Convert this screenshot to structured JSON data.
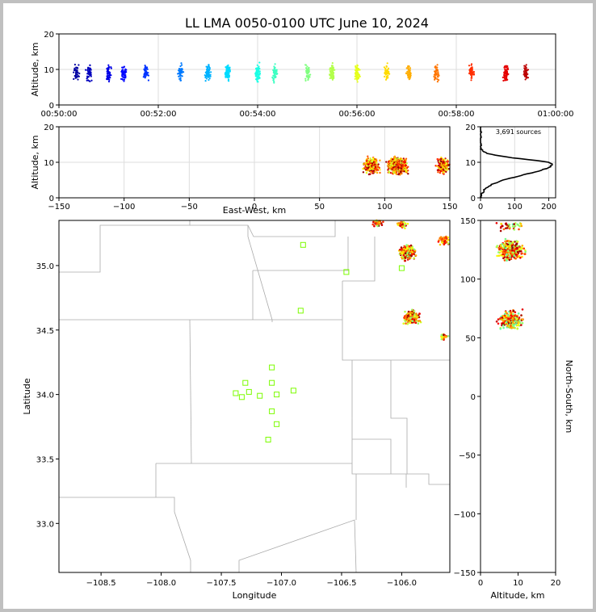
{
  "chart_data": [
    {
      "id": "time_height",
      "type": "scatter",
      "title": "LL LMA 0050-0100 UTC June 10, 2024",
      "ylabel": "Altitude, km",
      "xlabel": "",
      "xlim": [
        "00:50:00",
        "01:00:00"
      ],
      "ylim": [
        0,
        20
      ],
      "xticks": [
        "00:50:00",
        "00:52:00",
        "00:54:00",
        "00:56:00",
        "00:58:00",
        "01:00:00"
      ],
      "yticks": [
        0,
        10,
        20
      ],
      "colormap": "jet by time",
      "grid": true,
      "burst_times_min": [
        0.35,
        0.6,
        1.0,
        1.3,
        1.75,
        2.45,
        3.0,
        3.4,
        4.0,
        4.35,
        5.0,
        5.5,
        6.0,
        6.6,
        7.05,
        7.6,
        8.3,
        9.0,
        9.4
      ],
      "altitude_center_km": 9
    },
    {
      "id": "plan_ew",
      "type": "scatter",
      "xlabel": "East-West, km",
      "ylabel": "Altitude, km",
      "xlim": [
        -150,
        150
      ],
      "ylim": [
        0,
        20
      ],
      "xticks": [
        -150,
        -100,
        -50,
        0,
        50,
        100,
        150
      ],
      "yticks": [
        0,
        10,
        20
      ],
      "grid": true,
      "clusters_ew_km": [
        90,
        110,
        145
      ]
    },
    {
      "id": "altitude_histogram",
      "type": "line",
      "annotation": "3,691 sources",
      "xlim": [
        0,
        220
      ],
      "ylim": [
        0,
        20
      ],
      "xticks": [
        0,
        100,
        200
      ],
      "yticks": [
        0,
        10,
        20
      ],
      "peak_count": 210,
      "peak_altitude_km": 9.5
    },
    {
      "id": "plan_map",
      "type": "scatter",
      "xlabel": "Longitude",
      "ylabel": "Latitude",
      "xlim": [
        -108.85,
        -105.6
      ],
      "ylim": [
        32.62,
        35.35
      ],
      "xticks": [
        -108.5,
        -108.0,
        -107.5,
        -107.0,
        -106.5,
        -106.0
      ],
      "yticks": [
        33.0,
        33.5,
        34.0,
        34.5,
        35.0
      ],
      "stations": [
        [
          -106.82,
          35.16
        ],
        [
          -106.46,
          34.95
        ],
        [
          -106.0,
          34.98
        ],
        [
          -106.84,
          34.65
        ],
        [
          -107.08,
          34.21
        ],
        [
          -107.3,
          34.09
        ],
        [
          -107.08,
          34.09
        ],
        [
          -107.38,
          34.01
        ],
        [
          -107.27,
          34.02
        ],
        [
          -107.33,
          33.98
        ],
        [
          -107.18,
          33.99
        ],
        [
          -107.04,
          34.0
        ],
        [
          -106.9,
          34.03
        ],
        [
          -107.08,
          33.87
        ],
        [
          -107.04,
          33.77
        ],
        [
          -107.11,
          33.65
        ]
      ],
      "clusters_lonlat": [
        [
          -105.95,
          35.1
        ],
        [
          -105.92,
          34.6
        ],
        [
          -105.65,
          35.2
        ],
        [
          -105.65,
          34.45
        ],
        [
          -106.2,
          35.33
        ],
        [
          -106.0,
          35.32
        ]
      ]
    },
    {
      "id": "ns_altitude",
      "type": "scatter",
      "xlabel": "Altitude, km",
      "ylabel": "North-South, km",
      "xlim": [
        0,
        20
      ],
      "ylim": [
        -150,
        150
      ],
      "xticks": [
        0,
        10,
        20
      ],
      "yticks": [
        -150,
        -100,
        -50,
        0,
        50,
        100,
        150
      ],
      "clusters_ns_km": [
        125,
        65,
        145
      ]
    }
  ]
}
